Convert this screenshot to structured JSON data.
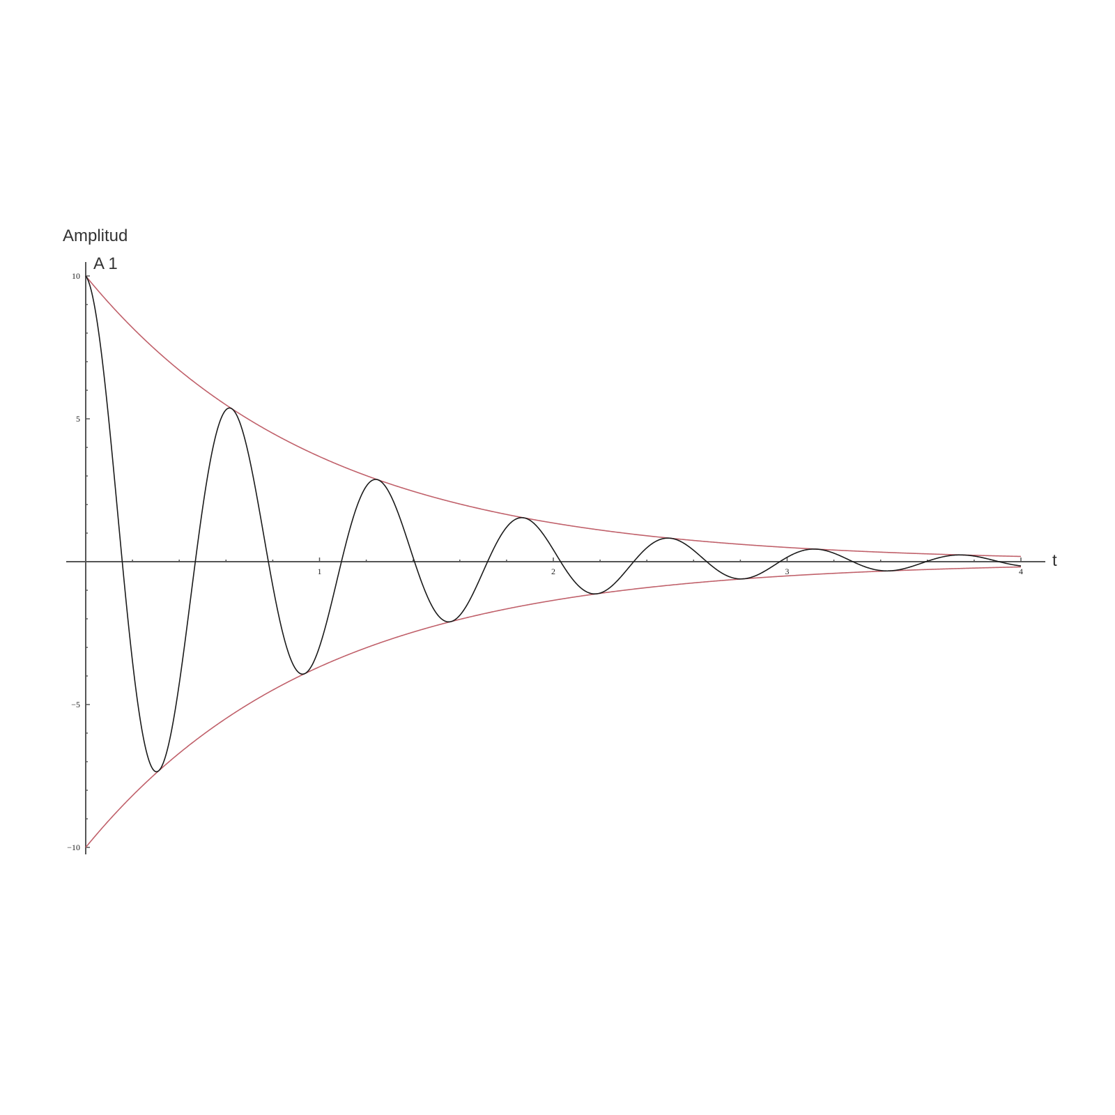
{
  "chart_data": {
    "type": "line",
    "ylabel": "Amplitud",
    "annotation": "A 1",
    "xlabel": "t",
    "xlim": [
      0,
      4
    ],
    "ylim": [
      -10,
      10
    ],
    "x_ticks": [
      1,
      2,
      3,
      4
    ],
    "y_ticks": [
      10,
      5,
      -5,
      -10
    ],
    "y_tick_labels": [
      "10",
      "5",
      "−5",
      "−10"
    ],
    "grid": false,
    "colors": {
      "signal": "#1a1a1a",
      "envelope": "#c0606a",
      "axis": "#555555"
    },
    "series": [
      {
        "role": "signal",
        "function": "10*exp(-t)*cos(2*pi*1.6*t)",
        "amplitude": 10,
        "decay_rate": 1.0,
        "frequency": 1.6
      },
      {
        "role": "upper-envelope",
        "function": "10*exp(-t)"
      },
      {
        "role": "lower-envelope",
        "function": "-10*exp(-t)"
      }
    ]
  }
}
